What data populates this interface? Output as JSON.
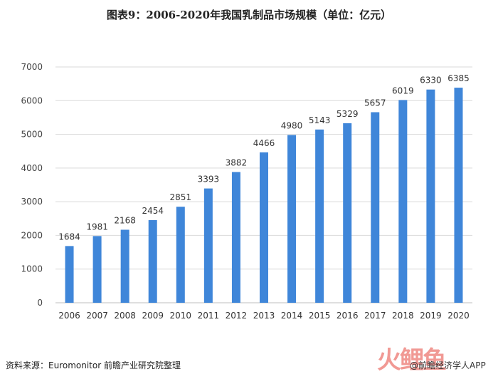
{
  "title": "图表9：2006-2020年我国乳制品市场规模（单位：亿元）",
  "source": "资料来源：Euromonitor 前瞻产业研究院整理",
  "brand": {
    "watermark_text": "前瞻产业研究院",
    "footer_brand": "@前瞻经济学人APP",
    "logo_text": "火鲤鱼"
  },
  "colors": {
    "bar": "#3f86d9",
    "grid": "#d9d9d9",
    "axis": "#bfbfbf"
  },
  "chart_data": {
    "type": "bar",
    "title": "图表9：2006-2020年我国乳制品市场规模（单位：亿元）",
    "categories": [
      "2006",
      "2007",
      "2008",
      "2009",
      "2010",
      "2011",
      "2012",
      "2013",
      "2014",
      "2015",
      "2016",
      "2017",
      "2018",
      "2019",
      "2020"
    ],
    "values": [
      1684,
      1981,
      2168,
      2454,
      2851,
      3393,
      3882,
      4466,
      4980,
      5143,
      5329,
      5657,
      6019,
      6330,
      6385
    ],
    "ylim": [
      0,
      7000
    ],
    "yticks": [
      0,
      1000,
      2000,
      3000,
      4000,
      5000,
      6000,
      7000
    ],
    "grid": true,
    "legend": "none",
    "data_labels": true
  }
}
